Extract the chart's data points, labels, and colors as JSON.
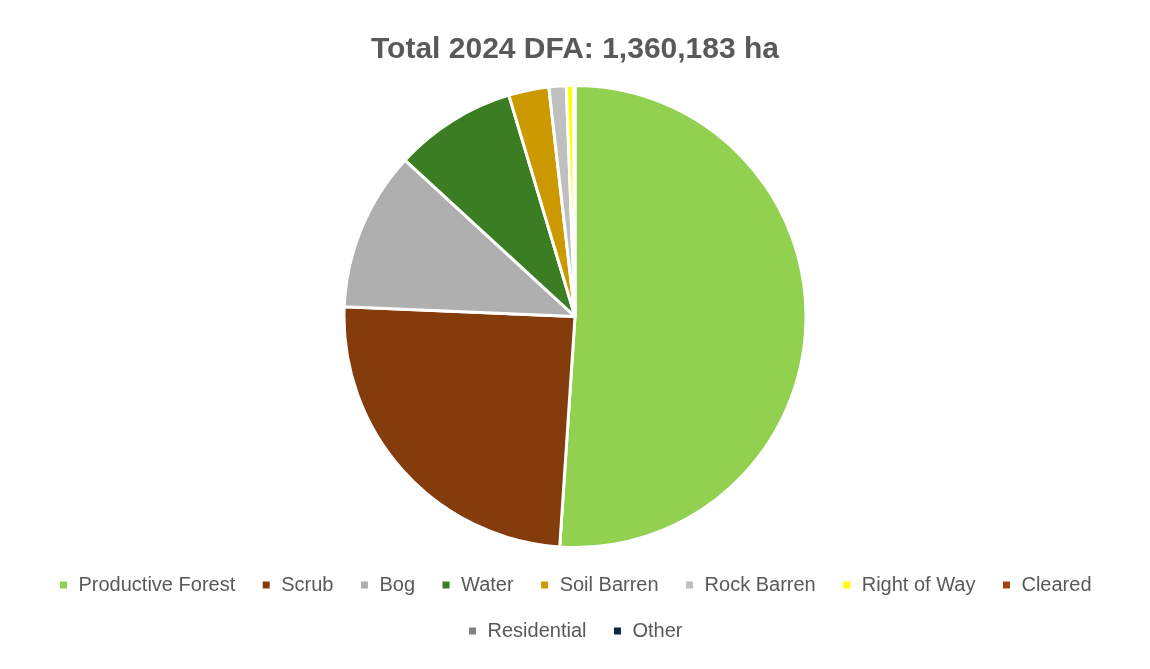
{
  "chart_data": {
    "type": "pie",
    "title": "Total 2024 DFA: 1,360,183 ha",
    "categories": [
      "Productive Forest",
      "Scrub",
      "Bog",
      "Water",
      "Soil Barren",
      "Rock Barren",
      "Right of Way",
      "Cleared",
      "Residential",
      "Other"
    ],
    "values": [
      50.8,
      24.5,
      11.1,
      8.5,
      2.8,
      1.2,
      0.5,
      null,
      null,
      0.1
    ],
    "colors": [
      "#92d050",
      "#843c0c",
      "#afafaf",
      "#3b7d23",
      "#cc9900",
      "#bfbfbf",
      "#ffff00",
      "#a5400f",
      "#808080",
      "#0e2841"
    ],
    "legend": "bottom"
  }
}
